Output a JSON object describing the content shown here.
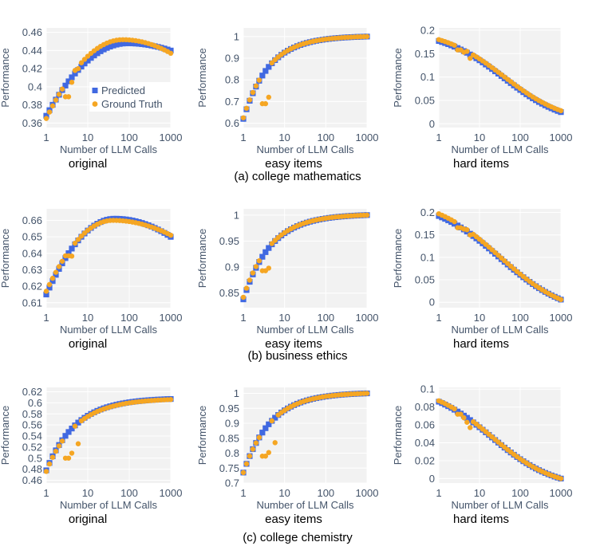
{
  "colors": {
    "predicted": "#4169e1",
    "ground_truth": "#f5a623",
    "plot_bg": "#f2f2f2",
    "grid": "#ffffff",
    "text": "#44546a"
  },
  "legend": {
    "predicted_label": "Predicted",
    "ground_truth_label": "Ground Truth"
  },
  "captions": [
    "(a) college mathematics",
    "(b) business ethics",
    "(c) college chemistry"
  ],
  "chart_data": [
    {
      "type": "scatter",
      "row": 0,
      "col": 0,
      "subtitle": "original",
      "xlabel": "Number of LLM Calls",
      "ylabel": "Performance",
      "xscale": "log",
      "xlim": [
        1,
        1000
      ],
      "xticks": [
        1,
        10,
        100,
        1000
      ],
      "xtick_labels": [
        "1",
        "10",
        "100",
        "1000"
      ],
      "ylim": [
        0.355,
        0.465
      ],
      "yticks": [
        0.36,
        0.38,
        0.4,
        0.42,
        0.44,
        0.46
      ],
      "ytick_labels": [
        "0.36",
        "0.38",
        "0.4",
        "0.42",
        "0.44",
        "0.46"
      ],
      "legend": true,
      "predicted": {
        "shape": "peak",
        "start": 0.368,
        "peak": 0.448,
        "peak_x": 90,
        "end": 0.44
      },
      "ground_truth": {
        "shape": "peak",
        "start": 0.365,
        "peak": 0.452,
        "peak_x": 70,
        "end": 0.437,
        "overrides": [
          [
            3,
            0.389
          ],
          [
            4,
            0.405
          ],
          [
            6,
            0.42
          ]
        ]
      }
    },
    {
      "type": "scatter",
      "row": 0,
      "col": 1,
      "subtitle": "easy items",
      "xlabel": "Number of LLM Calls",
      "ylabel": "Performance",
      "xscale": "log",
      "xlim": [
        1,
        1000
      ],
      "xticks": [
        1,
        10,
        100,
        1000
      ],
      "xtick_labels": [
        "1",
        "10",
        "100",
        "1000"
      ],
      "ylim": [
        0.58,
        1.04
      ],
      "yticks": [
        0.6,
        0.7,
        0.8,
        0.9,
        1
      ],
      "ytick_labels": [
        "0.6",
        "0.7",
        "0.8",
        "0.9",
        "1"
      ],
      "predicted": {
        "shape": "sat",
        "start": 0.62,
        "end": 1.0,
        "k": 1.6
      },
      "ground_truth": {
        "shape": "sat",
        "start": 0.625,
        "end": 1.0,
        "k": 1.6,
        "overrides": [
          [
            3,
            0.69
          ],
          [
            4,
            0.72
          ]
        ]
      }
    },
    {
      "type": "scatter",
      "row": 0,
      "col": 2,
      "subtitle": "hard items",
      "xlabel": "Number of LLM Calls",
      "ylabel": "Performance",
      "xscale": "log",
      "xlim": [
        1,
        1000
      ],
      "xticks": [
        1,
        10,
        100,
        1000
      ],
      "xtick_labels": [
        "1",
        "10",
        "100",
        "1000"
      ],
      "ylim": [
        -0.008,
        0.205
      ],
      "yticks": [
        0,
        0.05,
        0.1,
        0.15,
        0.2
      ],
      "ytick_labels": [
        "0",
        "0.05",
        "0.1",
        "0.15",
        "0.2"
      ],
      "predicted": {
        "shape": "sig",
        "start": 0.177,
        "end": 0.025,
        "mid": 1.6,
        "k": 1.3
      },
      "ground_truth": {
        "shape": "sig",
        "start": 0.18,
        "end": 0.028,
        "mid": 1.6,
        "k": 1.3,
        "overrides": [
          [
            3,
            0.158
          ],
          [
            4,
            0.153
          ],
          [
            6,
            0.14
          ]
        ]
      }
    },
    {
      "type": "scatter",
      "row": 1,
      "col": 0,
      "subtitle": "original",
      "xlabel": "Number of LLM Calls",
      "ylabel": "Performance",
      "xscale": "log",
      "xlim": [
        1,
        1000
      ],
      "xticks": [
        1,
        10,
        100,
        1000
      ],
      "xtick_labels": [
        "1",
        "10",
        "100",
        "1000"
      ],
      "ylim": [
        0.607,
        0.667
      ],
      "yticks": [
        0.61,
        0.62,
        0.63,
        0.64,
        0.65,
        0.66
      ],
      "ytick_labels": [
        "0.61",
        "0.62",
        "0.63",
        "0.64",
        "0.65",
        "0.66"
      ],
      "predicted": {
        "shape": "peak",
        "start": 0.615,
        "peak": 0.661,
        "peak_x": 45,
        "end": 0.65
      },
      "ground_truth": {
        "shape": "peak",
        "start": 0.617,
        "peak": 0.66,
        "peak_x": 40,
        "end": 0.651,
        "overrides": [
          [
            3,
            0.6385
          ],
          [
            4,
            0.6383
          ]
        ]
      }
    },
    {
      "type": "scatter",
      "row": 1,
      "col": 1,
      "subtitle": "easy items",
      "xlabel": "Number of LLM Calls",
      "ylabel": "Performance",
      "xscale": "log",
      "xlim": [
        1,
        1000
      ],
      "xticks": [
        1,
        10,
        100,
        1000
      ],
      "xtick_labels": [
        "1",
        "10",
        "100",
        "1000"
      ],
      "ylim": [
        0.822,
        1.012
      ],
      "yticks": [
        0.85,
        0.9,
        0.95,
        1
      ],
      "ytick_labels": [
        "0.85",
        "0.9",
        "0.95",
        "1"
      ],
      "predicted": {
        "shape": "sat",
        "start": 0.838,
        "end": 1.0,
        "k": 1.5
      },
      "ground_truth": {
        "shape": "sat",
        "start": 0.842,
        "end": 1.0,
        "k": 1.5,
        "overrides": [
          [
            3,
            0.893
          ],
          [
            4,
            0.898
          ]
        ]
      }
    },
    {
      "type": "scatter",
      "row": 1,
      "col": 2,
      "subtitle": "hard items",
      "xlabel": "Number of LLM Calls",
      "ylabel": "Performance",
      "xscale": "log",
      "xlim": [
        1,
        1000
      ],
      "xticks": [
        1,
        10,
        100,
        1000
      ],
      "xtick_labels": [
        "1",
        "10",
        "100",
        "1000"
      ],
      "ylim": [
        -0.012,
        0.208
      ],
      "yticks": [
        0,
        0.05,
        0.1,
        0.15,
        0.2
      ],
      "ytick_labels": [
        "0",
        "0.05",
        "0.1",
        "0.15",
        "0.2"
      ],
      "predicted": {
        "shape": "sig",
        "start": 0.192,
        "end": 0.006,
        "mid": 1.5,
        "k": 1.2
      },
      "ground_truth": {
        "shape": "sig",
        "start": 0.197,
        "end": 0.006,
        "mid": 1.5,
        "k": 1.2,
        "overrides": [
          [
            3,
            0.166
          ],
          [
            4,
            0.163
          ],
          [
            6,
            0.15
          ]
        ]
      }
    },
    {
      "type": "scatter",
      "row": 2,
      "col": 0,
      "subtitle": "original",
      "xlabel": "Number of LLM Calls",
      "ylabel": "Performance",
      "xscale": "log",
      "xlim": [
        1,
        1000
      ],
      "xticks": [
        1,
        10,
        100,
        1000
      ],
      "xtick_labels": [
        "1",
        "10",
        "100",
        "1000"
      ],
      "ylim": [
        0.455,
        0.628
      ],
      "yticks": [
        0.46,
        0.48,
        0.5,
        0.52,
        0.54,
        0.56,
        0.58,
        0.6,
        0.62
      ],
      "ytick_labels": [
        "0.46",
        "0.48",
        "0.5",
        "0.52",
        "0.54",
        "0.56",
        "0.58",
        "0.6",
        "0.62"
      ],
      "predicted": {
        "shape": "sat",
        "start": 0.478,
        "end": 0.607,
        "k": 1.4
      },
      "ground_truth": {
        "shape": "sat",
        "start": 0.476,
        "end": 0.606,
        "k": 1.4,
        "overrides": [
          [
            3,
            0.5
          ],
          [
            4,
            0.509
          ],
          [
            6,
            0.526
          ]
        ]
      }
    },
    {
      "type": "scatter",
      "row": 2,
      "col": 1,
      "subtitle": "easy items",
      "xlabel": "Number of LLM Calls",
      "ylabel": "Performance",
      "xscale": "log",
      "xlim": [
        1,
        1000
      ],
      "xticks": [
        1,
        10,
        100,
        1000
      ],
      "xtick_labels": [
        "1",
        "10",
        "100",
        "1000"
      ],
      "ylim": [
        0.7,
        1.02
      ],
      "yticks": [
        0.7,
        0.75,
        0.8,
        0.85,
        0.9,
        0.95,
        1
      ],
      "ytick_labels": [
        "0.7",
        "0.75",
        "0.8",
        "0.85",
        "0.9",
        "0.95",
        "1"
      ],
      "predicted": {
        "shape": "sat",
        "start": 0.735,
        "end": 1.0,
        "k": 1.5
      },
      "ground_truth": {
        "shape": "sat",
        "start": 0.735,
        "end": 1.0,
        "k": 1.5,
        "overrides": [
          [
            3,
            0.79
          ],
          [
            4,
            0.802
          ],
          [
            6,
            0.835
          ]
        ]
      }
    },
    {
      "type": "scatter",
      "row": 2,
      "col": 2,
      "subtitle": "hard items",
      "xlabel": "Number of LLM Calls",
      "ylabel": "Performance",
      "xscale": "log",
      "xlim": [
        1,
        1000
      ],
      "xticks": [
        1,
        10,
        100,
        1000
      ],
      "xtick_labels": [
        "1",
        "10",
        "100",
        "1000"
      ],
      "ylim": [
        -0.005,
        0.102
      ],
      "yticks": [
        0,
        0.02,
        0.04,
        0.06,
        0.08,
        0.1
      ],
      "ytick_labels": [
        "0",
        "0.02",
        "0.04",
        "0.06",
        "0.08",
        "0.1"
      ],
      "predicted": {
        "shape": "sig",
        "start": 0.086,
        "end": 0.0,
        "mid": 1.3,
        "k": 1.3
      },
      "ground_truth": {
        "shape": "sig",
        "start": 0.087,
        "end": 0.0,
        "mid": 1.3,
        "k": 1.3,
        "overrides": [
          [
            3,
            0.072
          ],
          [
            4,
            0.068
          ],
          [
            5,
            0.063
          ],
          [
            6,
            0.057
          ]
        ]
      }
    }
  ]
}
